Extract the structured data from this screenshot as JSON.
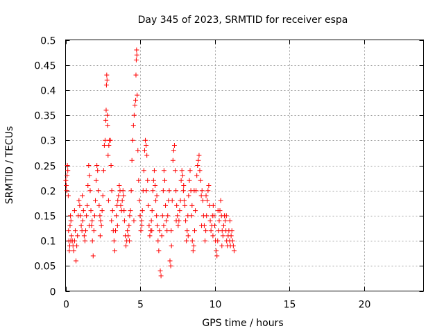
{
  "chart_data": {
    "type": "scatter",
    "title": "Day 345 of 2023, SRMTID for receiver espa",
    "xlabel": "GPS time / hours",
    "ylabel": "SRMTID / TECUs",
    "xlim": [
      0,
      24
    ],
    "ylim": [
      0,
      0.5
    ],
    "xticks": [
      0,
      5,
      10,
      15,
      20
    ],
    "yticks": [
      0,
      0.05,
      0.1,
      0.15,
      0.2,
      0.25,
      0.3,
      0.35,
      0.4,
      0.45,
      0.5
    ],
    "xtick_labels": [
      "0",
      "5",
      "10",
      "15",
      "20"
    ],
    "ytick_labels": [
      "0",
      "0.05",
      "0.1",
      "0.15",
      "0.2",
      "0.25",
      "0.3",
      "0.35",
      "0.4",
      "0.45",
      "0.5"
    ],
    "grid": true,
    "marker": "+",
    "color": "#ff0000",
    "series": [
      {
        "name": "SRMTID",
        "points": [
          [
            0.02,
            0.22
          ],
          [
            0.05,
            0.21
          ],
          [
            0.08,
            0.2
          ],
          [
            0.1,
            0.23
          ],
          [
            0.12,
            0.25
          ],
          [
            0.15,
            0.24
          ],
          [
            0.18,
            0.19
          ],
          [
            0.2,
            0.12
          ],
          [
            0.22,
            0.1
          ],
          [
            0.25,
            0.08
          ],
          [
            0.28,
            0.09
          ],
          [
            0.3,
            0.13
          ],
          [
            0.33,
            0.15
          ],
          [
            0.36,
            0.14
          ],
          [
            0.4,
            0.11
          ],
          [
            0.45,
            0.1
          ],
          [
            0.5,
            0.09
          ],
          [
            0.55,
            0.08
          ],
          [
            0.6,
            0.1
          ],
          [
            0.65,
            0.12
          ],
          [
            0.7,
            0.06
          ],
          [
            0.75,
            0.09
          ],
          [
            0.8,
            0.11
          ],
          [
            0.85,
            0.15
          ],
          [
            0.9,
            0.18
          ],
          [
            0.95,
            0.17
          ],
          [
            1.0,
            0.15
          ],
          [
            1.05,
            0.13
          ],
          [
            1.1,
            0.12
          ],
          [
            1.15,
            0.14
          ],
          [
            1.2,
            0.16
          ],
          [
            1.25,
            0.11
          ],
          [
            1.3,
            0.1
          ],
          [
            1.35,
            0.12
          ],
          [
            1.4,
            0.15
          ],
          [
            1.45,
            0.17
          ],
          [
            1.5,
            0.21
          ],
          [
            1.55,
            0.25
          ],
          [
            1.6,
            0.23
          ],
          [
            1.65,
            0.2
          ],
          [
            1.7,
            0.16
          ],
          [
            1.75,
            0.13
          ],
          [
            1.8,
            0.1
          ],
          [
            1.85,
            0.07
          ],
          [
            1.9,
            0.12
          ],
          [
            1.95,
            0.15
          ],
          [
            2.0,
            0.18
          ],
          [
            2.05,
            0.22
          ],
          [
            2.1,
            0.25
          ],
          [
            2.15,
            0.24
          ],
          [
            2.2,
            0.2
          ],
          [
            2.25,
            0.17
          ],
          [
            2.3,
            0.15
          ],
          [
            2.35,
            0.14
          ],
          [
            2.4,
            0.13
          ],
          [
            2.45,
            0.16
          ],
          [
            2.5,
            0.19
          ],
          [
            2.55,
            0.24
          ],
          [
            2.6,
            0.29
          ],
          [
            2.65,
            0.3
          ],
          [
            2.7,
            0.34
          ],
          [
            2.72,
            0.36
          ],
          [
            2.74,
            0.41
          ],
          [
            2.76,
            0.43
          ],
          [
            2.78,
            0.42
          ],
          [
            2.8,
            0.35
          ],
          [
            2.82,
            0.33
          ],
          [
            2.85,
            0.27
          ],
          [
            2.9,
            0.29
          ],
          [
            2.95,
            0.3
          ],
          [
            3.0,
            0.3
          ],
          [
            3.05,
            0.25
          ],
          [
            3.1,
            0.2
          ],
          [
            3.15,
            0.16
          ],
          [
            3.2,
            0.12
          ],
          [
            3.25,
            0.1
          ],
          [
            3.3,
            0.08
          ],
          [
            3.35,
            0.12
          ],
          [
            3.4,
            0.15
          ],
          [
            3.45,
            0.17
          ],
          [
            3.5,
            0.18
          ],
          [
            3.55,
            0.19
          ],
          [
            3.6,
            0.21
          ],
          [
            3.65,
            0.2
          ],
          [
            3.7,
            0.17
          ],
          [
            3.75,
            0.16
          ],
          [
            3.8,
            0.18
          ],
          [
            3.85,
            0.2
          ],
          [
            3.9,
            0.19
          ],
          [
            3.95,
            0.14
          ],
          [
            4.0,
            0.11
          ],
          [
            4.05,
            0.09
          ],
          [
            4.1,
            0.1
          ],
          [
            4.15,
            0.12
          ],
          [
            4.2,
            0.11
          ],
          [
            4.25,
            0.13
          ],
          [
            4.3,
            0.15
          ],
          [
            4.35,
            0.16
          ],
          [
            4.4,
            0.2
          ],
          [
            4.45,
            0.26
          ],
          [
            4.5,
            0.3
          ],
          [
            4.55,
            0.33
          ],
          [
            4.6,
            0.35
          ],
          [
            4.65,
            0.37
          ],
          [
            4.7,
            0.38
          ],
          [
            4.72,
            0.43
          ],
          [
            4.74,
            0.46
          ],
          [
            4.76,
            0.48
          ],
          [
            4.78,
            0.47
          ],
          [
            4.8,
            0.39
          ],
          [
            4.85,
            0.28
          ],
          [
            4.9,
            0.22
          ],
          [
            4.95,
            0.18
          ],
          [
            5.0,
            0.15
          ],
          [
            5.05,
            0.12
          ],
          [
            5.1,
            0.14
          ],
          [
            5.15,
            0.16
          ],
          [
            5.2,
            0.2
          ],
          [
            5.25,
            0.24
          ],
          [
            5.3,
            0.28
          ],
          [
            5.35,
            0.3
          ],
          [
            5.4,
            0.29
          ],
          [
            5.45,
            0.27
          ],
          [
            5.5,
            0.22
          ],
          [
            5.55,
            0.17
          ],
          [
            5.6,
            0.13
          ],
          [
            5.65,
            0.11
          ],
          [
            5.7,
            0.12
          ],
          [
            5.75,
            0.14
          ],
          [
            5.8,
            0.16
          ],
          [
            5.85,
            0.2
          ],
          [
            5.9,
            0.22
          ],
          [
            5.95,
            0.24
          ],
          [
            6.0,
            0.21
          ],
          [
            6.05,
            0.18
          ],
          [
            6.1,
            0.15
          ],
          [
            6.15,
            0.13
          ],
          [
            6.2,
            0.1
          ],
          [
            6.25,
            0.08
          ],
          [
            6.3,
            0.12
          ],
          [
            6.35,
            0.04
          ],
          [
            6.4,
            0.03
          ],
          [
            6.45,
            0.11
          ],
          [
            6.5,
            0.15
          ],
          [
            6.55,
            0.2
          ],
          [
            6.6,
            0.24
          ],
          [
            6.65,
            0.22
          ],
          [
            6.7,
            0.17
          ],
          [
            6.75,
            0.14
          ],
          [
            6.8,
            0.12
          ],
          [
            6.85,
            0.15
          ],
          [
            6.9,
            0.18
          ],
          [
            6.95,
            0.2
          ],
          [
            7.0,
            0.06
          ],
          [
            7.05,
            0.05
          ],
          [
            7.1,
            0.09
          ],
          [
            7.15,
            0.18
          ],
          [
            7.2,
            0.26
          ],
          [
            7.25,
            0.28
          ],
          [
            7.3,
            0.29
          ],
          [
            7.35,
            0.24
          ],
          [
            7.4,
            0.2
          ],
          [
            7.45,
            0.17
          ],
          [
            7.5,
            0.15
          ],
          [
            7.55,
            0.13
          ],
          [
            7.6,
            0.14
          ],
          [
            7.65,
            0.16
          ],
          [
            7.7,
            0.18
          ],
          [
            7.75,
            0.22
          ],
          [
            7.8,
            0.24
          ],
          [
            7.85,
            0.23
          ],
          [
            7.9,
            0.2
          ],
          [
            7.95,
            0.18
          ],
          [
            8.0,
            0.17
          ],
          [
            8.05,
            0.14
          ],
          [
            8.1,
            0.1
          ],
          [
            8.15,
            0.12
          ],
          [
            8.2,
            0.15
          ],
          [
            8.25,
            0.19
          ],
          [
            8.3,
            0.22
          ],
          [
            8.35,
            0.24
          ],
          [
            8.4,
            0.2
          ],
          [
            8.45,
            0.15
          ],
          [
            8.5,
            0.1
          ],
          [
            8.55,
            0.08
          ],
          [
            8.6,
            0.09
          ],
          [
            8.65,
            0.12
          ],
          [
            8.7,
            0.16
          ],
          [
            8.75,
            0.2
          ],
          [
            8.8,
            0.23
          ],
          [
            8.85,
            0.25
          ],
          [
            8.9,
            0.26
          ],
          [
            8.95,
            0.27
          ],
          [
            9.0,
            0.24
          ],
          [
            9.05,
            0.22
          ],
          [
            9.1,
            0.19
          ],
          [
            9.15,
            0.2
          ],
          [
            9.2,
            0.18
          ],
          [
            9.25,
            0.15
          ],
          [
            9.3,
            0.13
          ],
          [
            9.35,
            0.1
          ],
          [
            9.4,
            0.12
          ],
          [
            9.45,
            0.15
          ],
          [
            9.5,
            0.18
          ],
          [
            9.55,
            0.2
          ],
          [
            9.6,
            0.21
          ],
          [
            9.65,
            0.17
          ],
          [
            9.7,
            0.14
          ],
          [
            9.75,
            0.12
          ],
          [
            9.8,
            0.13
          ],
          [
            9.85,
            0.15
          ],
          [
            9.9,
            0.17
          ],
          [
            9.95,
            0.15
          ],
          [
            10.0,
            0.13
          ],
          [
            10.05,
            0.1
          ],
          [
            10.1,
            0.08
          ],
          [
            10.15,
            0.07
          ],
          [
            10.2,
            0.1
          ],
          [
            10.25,
            0.12
          ],
          [
            10.3,
            0.14
          ],
          [
            10.35,
            0.16
          ],
          [
            10.4,
            0.18
          ],
          [
            10.45,
            0.15
          ],
          [
            10.5,
            0.12
          ],
          [
            10.55,
            0.11
          ],
          [
            10.6,
            0.13
          ],
          [
            10.65,
            0.15
          ],
          [
            10.7,
            0.14
          ],
          [
            10.75,
            0.12
          ],
          [
            10.8,
            0.1
          ],
          [
            10.85,
            0.09
          ],
          [
            10.9,
            0.11
          ],
          [
            10.95,
            0.12
          ],
          [
            11.0,
            0.1
          ],
          [
            11.05,
            0.09
          ],
          [
            11.1,
            0.11
          ],
          [
            11.15,
            0.12
          ],
          [
            11.2,
            0.1
          ],
          [
            11.25,
            0.09
          ],
          [
            11.3,
            0.08
          ],
          [
            0.35,
            0.1
          ],
          [
            0.6,
            0.16
          ],
          [
            1.12,
            0.19
          ],
          [
            1.58,
            0.13
          ],
          [
            2.32,
            0.11
          ],
          [
            2.88,
            0.18
          ],
          [
            3.48,
            0.13
          ],
          [
            3.92,
            0.16
          ],
          [
            4.28,
            0.1
          ],
          [
            4.58,
            0.14
          ],
          [
            5.12,
            0.13
          ],
          [
            5.42,
            0.2
          ],
          [
            5.78,
            0.12
          ],
          [
            6.12,
            0.19
          ],
          [
            6.58,
            0.13
          ],
          [
            7.08,
            0.12
          ],
          [
            7.42,
            0.14
          ],
          [
            7.92,
            0.21
          ],
          [
            8.22,
            0.11
          ],
          [
            8.62,
            0.2
          ],
          [
            9.12,
            0.13
          ],
          [
            9.42,
            0.19
          ],
          [
            9.88,
            0.11
          ],
          [
            10.22,
            0.16
          ],
          [
            10.48,
            0.09
          ],
          [
            10.78,
            0.15
          ],
          [
            11.02,
            0.14
          ],
          [
            1.78,
            0.14
          ],
          [
            3.08,
            0.14
          ],
          [
            8.48,
            0.17
          ]
        ]
      }
    ]
  }
}
